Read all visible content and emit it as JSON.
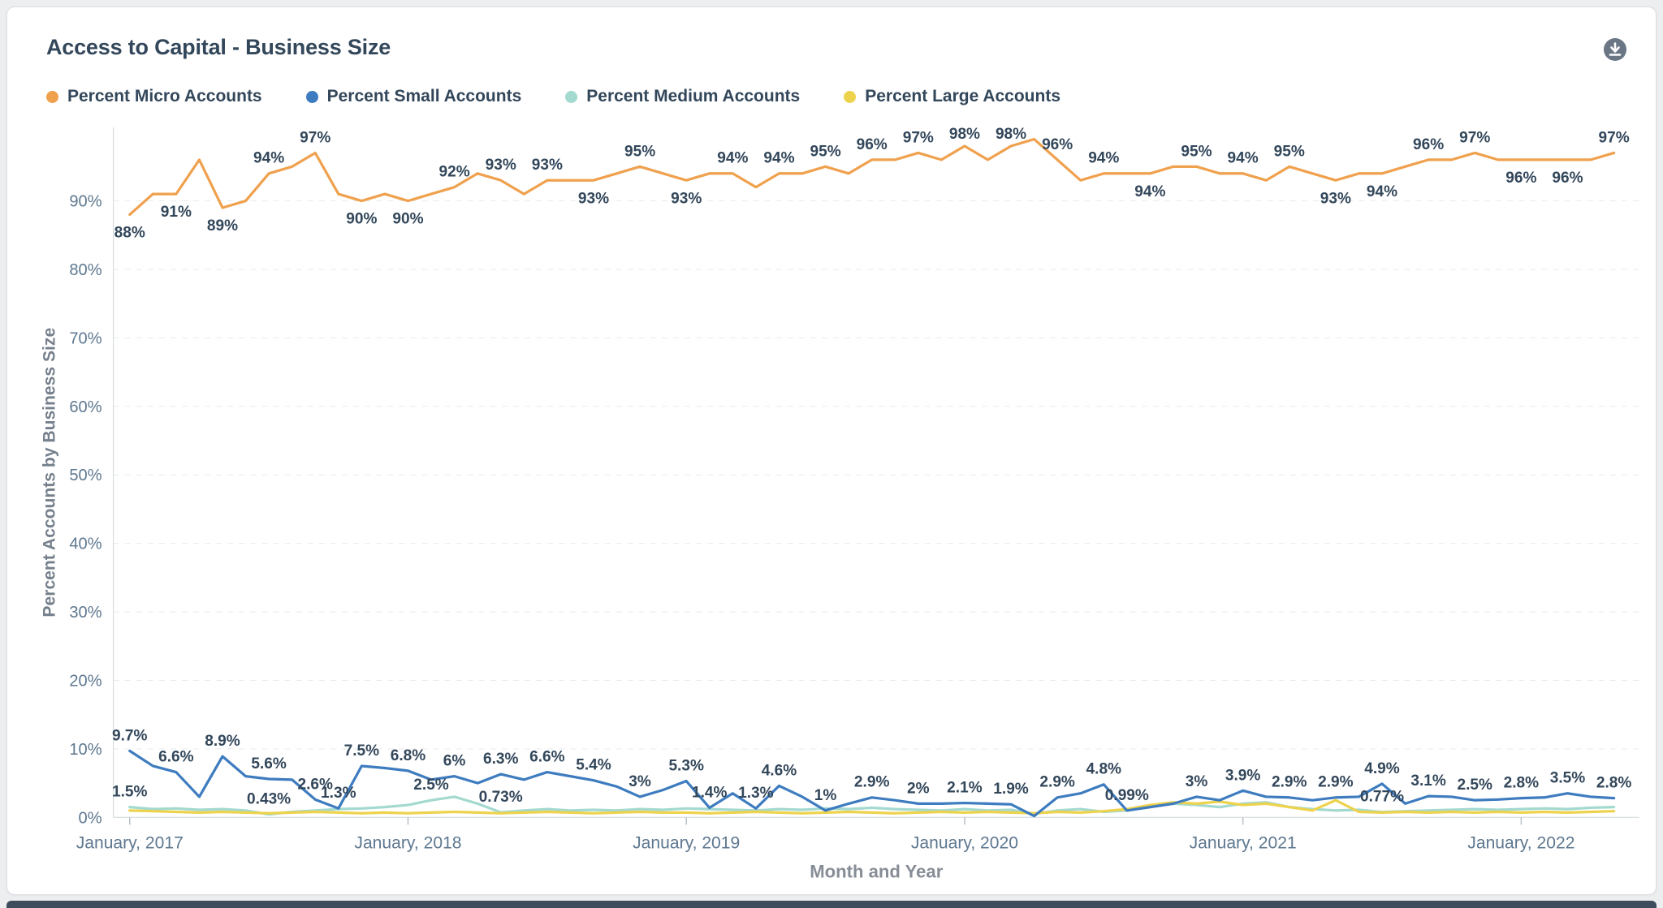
{
  "chart_data": {
    "type": "line",
    "title": "Access to Capital - Business Size",
    "xlabel": "Month and Year",
    "ylabel": "Percent Accounts by Business Size",
    "ylim": [
      0,
      100
    ],
    "yticks": [
      0,
      10,
      20,
      30,
      40,
      50,
      60,
      70,
      80,
      90
    ],
    "grid": "horizontal-dashed",
    "legend_position": "top-left",
    "x_start": "January, 2017",
    "x_frequency": "monthly",
    "n_months": 65,
    "x_tick_labels": [
      "January, 2017",
      "January, 2018",
      "January, 2019",
      "January, 2020",
      "January, 2021",
      "January, 2022"
    ],
    "x_tick_month_index": [
      0,
      12,
      24,
      36,
      48,
      60
    ],
    "series": [
      {
        "name": "Percent Micro Accounts",
        "color": "#EFA14E",
        "values": [
          88,
          91,
          91,
          96,
          89,
          90,
          94,
          95,
          97,
          91,
          90,
          91,
          90,
          91,
          92,
          94,
          93,
          91,
          93,
          93,
          93,
          94,
          95,
          94,
          93,
          94,
          94,
          92,
          94,
          94,
          95,
          94,
          96,
          96,
          97,
          96,
          98,
          96,
          98,
          99,
          96,
          93,
          94,
          94,
          94,
          95,
          95,
          94,
          94,
          93,
          95,
          94,
          93,
          94,
          94,
          95,
          96,
          96,
          97,
          96,
          96,
          96,
          96,
          96,
          97
        ],
        "labels": [
          "88%",
          "",
          "91%",
          "",
          "89%",
          "",
          "94%",
          "",
          "97%",
          "",
          "90%",
          "",
          "90%",
          "",
          "92%",
          "",
          "93%",
          "",
          "93%",
          "",
          "93%",
          "",
          "95%",
          "",
          "93%",
          "",
          "94%",
          "",
          "94%",
          "",
          "95%",
          "",
          "96%",
          "",
          "97%",
          "",
          "98%",
          "",
          "98%",
          "",
          "96%",
          "",
          "94%",
          "",
          "94%",
          "",
          "95%",
          "",
          "94%",
          "",
          "95%",
          "",
          "93%",
          "",
          "94%",
          "",
          "96%",
          "",
          "97%",
          "",
          "96%",
          "",
          "96%",
          "",
          "97%"
        ]
      },
      {
        "name": "Percent Small Accounts",
        "color": "#3E7CBF",
        "values": [
          9.7,
          7.5,
          6.6,
          3,
          8.9,
          6,
          5.6,
          5.5,
          2.6,
          1.3,
          7.5,
          7.2,
          6.8,
          5.5,
          6,
          5,
          6.3,
          5.5,
          6.6,
          6,
          5.4,
          4.5,
          3,
          4,
          5.3,
          1.4,
          3.5,
          1.3,
          4.6,
          3,
          1,
          2,
          2.9,
          2.5,
          2,
          2,
          2.1,
          2,
          1.9,
          0.2,
          2.9,
          3.5,
          4.8,
          0.99,
          1.5,
          2,
          3,
          2.5,
          3.9,
          3,
          2.9,
          2.5,
          2.9,
          3,
          4.9,
          2,
          3.1,
          3,
          2.5,
          2.6,
          2.8,
          2.9,
          3.5,
          3,
          2.8
        ],
        "labels": [
          "9.7%",
          "",
          "6.6%",
          "",
          "8.9%",
          "",
          "5.6%",
          "",
          "2.6%",
          "1.3%",
          "7.5%",
          "",
          "6.8%",
          "",
          "6%",
          "",
          "6.3%",
          "",
          "6.6%",
          "",
          "5.4%",
          "",
          "3%",
          "",
          "5.3%",
          "1.4%",
          "",
          "1.3%",
          "4.6%",
          "",
          "1%",
          "",
          "2.9%",
          "",
          "2%",
          "",
          "2.1%",
          "",
          "1.9%",
          "",
          "2.9%",
          "",
          "4.8%",
          "0.99%",
          "",
          "",
          "3%",
          "",
          "3.9%",
          "",
          "2.9%",
          "",
          "2.9%",
          "",
          "4.9%",
          "",
          "3.1%",
          "",
          "2.5%",
          "",
          "2.8%",
          "",
          "3.5%",
          "",
          "2.8%"
        ]
      },
      {
        "name": "Percent Medium Accounts",
        "color": "#A3D9CF",
        "values": [
          1.5,
          1.2,
          1.3,
          1.1,
          1.2,
          1.0,
          0.43,
          0.8,
          1.0,
          1.2,
          1.3,
          1.5,
          1.8,
          2.5,
          3.0,
          2.0,
          0.73,
          1.0,
          1.2,
          1.0,
          1.1,
          1.0,
          1.2,
          1.1,
          1.3,
          1.2,
          1.1,
          1.0,
          1.2,
          1.1,
          1.3,
          1.2,
          1.4,
          1.2,
          1.1,
          1.0,
          1.2,
          1.0,
          1.1,
          0.5,
          1.0,
          1.2,
          0.8,
          1.0,
          1.5,
          2.0,
          1.8,
          1.5,
          2.0,
          2.2,
          1.5,
          1.2,
          1.0,
          1.1,
          0.77,
          0.9,
          1.0,
          1.1,
          1.2,
          1.1,
          1.2,
          1.3,
          1.2,
          1.4,
          1.5
        ],
        "labels": [
          "1.5%",
          "",
          "",
          "",
          "",
          "",
          "0.43%",
          "",
          "",
          "",
          "",
          "",
          "",
          "2.5%",
          "",
          "",
          "0.73%",
          "",
          "",
          "",
          "",
          "",
          "",
          "",
          "",
          "",
          "",
          "",
          "",
          "",
          "",
          "",
          "",
          "",
          "",
          "",
          "",
          "",
          "",
          "",
          "",
          "",
          "",
          "",
          "",
          "",
          "",
          "",
          "",
          "",
          "",
          "",
          "",
          "",
          "0.77%",
          "",
          "",
          "",
          "",
          "",
          "",
          "",
          "",
          "",
          ""
        ]
      },
      {
        "name": "Percent Large Accounts",
        "color": "#EDD34D",
        "values": [
          1.0,
          0.9,
          0.8,
          0.7,
          0.8,
          0.7,
          0.6,
          0.7,
          0.8,
          0.7,
          0.6,
          0.7,
          0.6,
          0.7,
          0.8,
          0.7,
          0.6,
          0.7,
          0.8,
          0.7,
          0.6,
          0.7,
          0.8,
          0.7,
          0.7,
          0.6,
          0.7,
          0.8,
          0.7,
          0.6,
          0.7,
          0.8,
          0.7,
          0.6,
          0.7,
          0.8,
          0.7,
          0.8,
          0.7,
          0.6,
          0.8,
          0.7,
          0.9,
          1.2,
          1.8,
          2.2,
          2.0,
          2.3,
          1.8,
          2.0,
          1.5,
          1.0,
          2.5,
          0.8,
          0.7,
          0.8,
          0.7,
          0.8,
          0.7,
          0.8,
          0.7,
          0.8,
          0.7,
          0.8,
          0.9
        ]
      }
    ]
  }
}
